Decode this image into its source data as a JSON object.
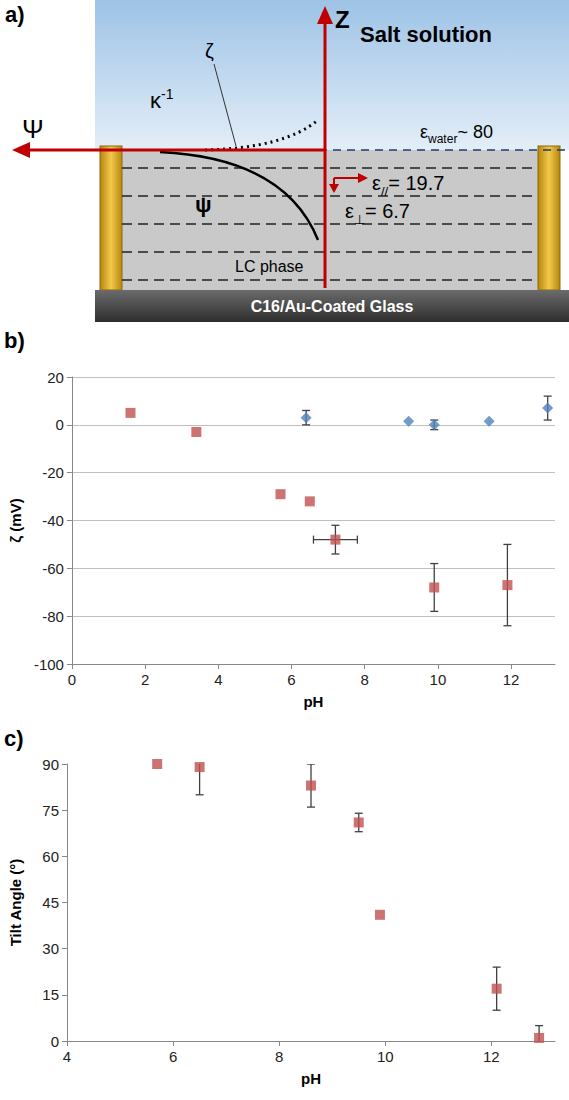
{
  "diagram": {
    "letter": "a)",
    "axis_z": "Z",
    "axis_psi": "Ψ",
    "region_top": "Salt solution",
    "zeta": "ζ",
    "debye": {
      "base": "κ",
      "sup": "-1"
    },
    "potential": "ψ",
    "eps_water": {
      "base": "ε",
      "sub": "water",
      "text": "~ 80"
    },
    "eps_par": {
      "base": "ε",
      "sub": "//",
      "text": "= 19.7"
    },
    "eps_perp": {
      "base": "ε",
      "sub": "⊥",
      "text": "= 6.7"
    },
    "lc": "LC phase",
    "substrate": "C16/Au-Coated Glass"
  },
  "chart_data": [
    {
      "letter": "b)",
      "type": "scatter",
      "xlabel": "pH",
      "ylabel": "ζ (mV)",
      "xlim": [
        0,
        13.2
      ],
      "xticks": [
        0,
        2,
        4,
        6,
        8,
        10,
        12
      ],
      "ylim": [
        -100,
        20
      ],
      "yticks": [
        -100,
        -80,
        -60,
        -40,
        -20,
        0,
        20
      ],
      "grid": true,
      "series": [
        {
          "color": "#c0504d",
          "marker": "square",
          "x": [
            1.6,
            3.4,
            5.7,
            6.5,
            7.2,
            9.9,
            11.9
          ],
          "values": [
            5,
            -3,
            -29,
            -32,
            -48,
            -68,
            -67
          ],
          "yerr": [
            null,
            null,
            null,
            null,
            6,
            10,
            17
          ],
          "xerr": [
            null,
            null,
            null,
            null,
            0.6,
            null,
            null
          ]
        },
        {
          "color": "#4f81bd",
          "marker": "diamond",
          "x": [
            6.4,
            9.2,
            9.9,
            11.4,
            13
          ],
          "values": [
            3,
            1.5,
            0,
            1.5,
            7
          ],
          "yerr": [
            3,
            null,
            2,
            null,
            5
          ],
          "xerr": [
            null,
            null,
            null,
            null,
            null
          ]
        }
      ]
    },
    {
      "letter": "c)",
      "type": "scatter",
      "xlabel": "pH",
      "ylabel": "Tilt Angle (°)",
      "xlim": [
        4,
        13.2
      ],
      "xticks": [
        4,
        6,
        8,
        10,
        12
      ],
      "ylim": [
        0,
        90
      ],
      "yticks": [
        0,
        15,
        30,
        45,
        60,
        75,
        90
      ],
      "grid": false,
      "series": [
        {
          "color": "#c0504d",
          "marker": "square",
          "x": [
            5.7,
            6.5,
            8.6,
            9.5,
            9.9,
            12.1,
            12.9
          ],
          "values": [
            90,
            89,
            83,
            71,
            41,
            17,
            1
          ],
          "yerr": [
            null,
            9,
            7,
            3,
            null,
            7,
            4
          ],
          "xerr": [
            null,
            null,
            null,
            null,
            null,
            null,
            null
          ]
        }
      ]
    }
  ]
}
